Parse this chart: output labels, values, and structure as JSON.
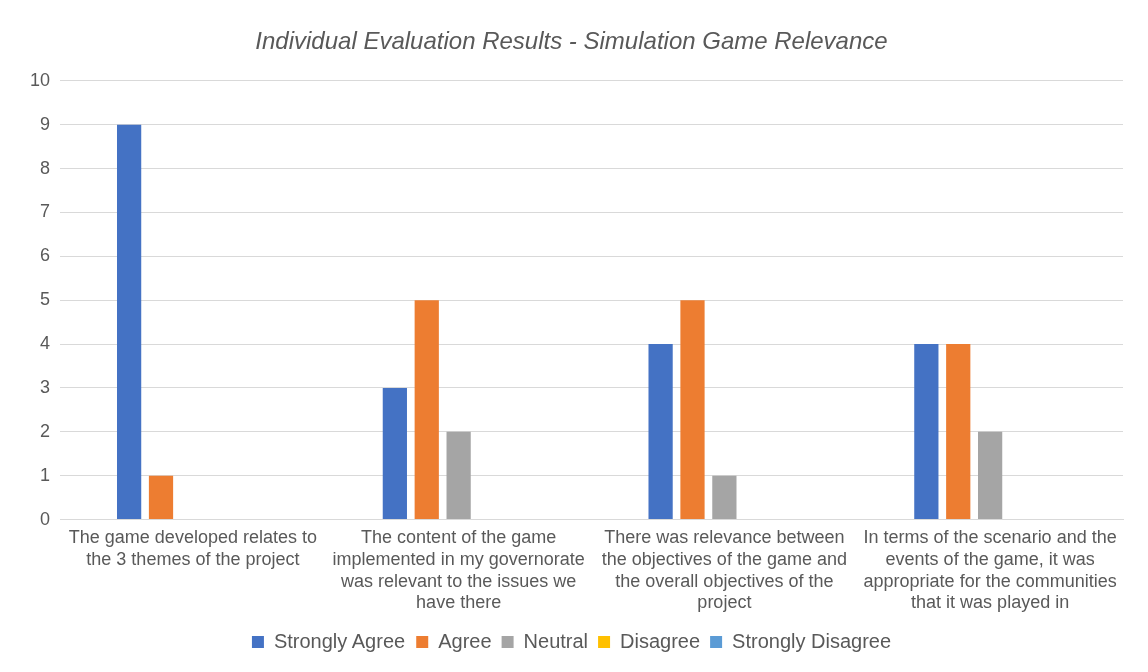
{
  "chart_data": {
    "type": "bar",
    "title": "Individual Evaluation Results - Simulation Game Relevance",
    "categories": [
      "The game developed relates to the 3 themes of the project",
      "The content of the game implemented in my governorate was relevant to the issues we have there",
      "There was relevance between the objectives of the game and the overall objectives of the project",
      "In terms of the scenario and the events of the game, it was appropriate for the communities that it was played in"
    ],
    "series": [
      {
        "name": "Strongly Agree",
        "color": "#4472c4",
        "values": [
          9,
          3,
          4,
          4
        ]
      },
      {
        "name": "Agree",
        "color": "#ed7d31",
        "values": [
          1,
          5,
          5,
          4
        ]
      },
      {
        "name": "Neutral",
        "color": "#a5a5a5",
        "values": [
          0,
          2,
          1,
          2
        ]
      },
      {
        "name": "Disagree",
        "color": "#ffc000",
        "values": [
          0,
          0,
          0,
          0
        ]
      },
      {
        "name": "Strongly Disagree",
        "color": "#5b9bd5",
        "values": [
          0,
          0,
          0,
          0
        ]
      }
    ],
    "ylim": [
      0,
      10
    ],
    "yticks": [
      0,
      1,
      2,
      3,
      4,
      5,
      6,
      7,
      8,
      9,
      10
    ],
    "grid": "y",
    "legend": "bottom"
  }
}
